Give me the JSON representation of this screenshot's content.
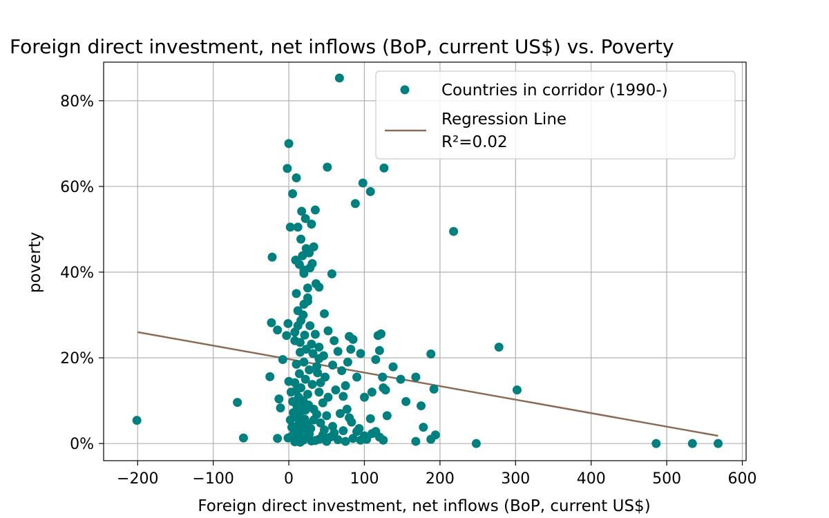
{
  "chart_data": {
    "type": "scatter",
    "title": "Foreign direct investment, net inflows (BoP, current US$) vs. Poverty",
    "xlabel": "Foreign direct investment, net inflows (BoP, current US$)",
    "ylabel": "poverty",
    "xlim": [
      -245,
      605
    ],
    "ylim": [
      -4,
      89
    ],
    "xticks": [
      -200,
      -100,
      0,
      100,
      200,
      300,
      400,
      500,
      600
    ],
    "xtick_labels": [
      "−200",
      "−100",
      "0",
      "100",
      "200",
      "300",
      "400",
      "500",
      "600"
    ],
    "yticks": [
      0,
      20,
      40,
      60,
      80
    ],
    "ytick_labels": [
      "0%",
      "20%",
      "40%",
      "60%",
      "80%"
    ],
    "grid": true,
    "legend": {
      "position": "top-right",
      "scatter_label": "Countries in corridor (1990-)",
      "line_label_1": "Regression Line",
      "line_label_2": "R²=0.02"
    },
    "colors": {
      "points": "#007f7f",
      "regression": "#8c6a55"
    },
    "regression": {
      "x": [
        -200,
        568
      ],
      "y": [
        26.0,
        1.8
      ]
    },
    "series": [
      {
        "name": "Countries in corridor (1990-)",
        "points": [
          [
            -201,
            5.4
          ],
          [
            -68,
            9.6
          ],
          [
            -60,
            1.3
          ],
          [
            -22,
            43.5
          ],
          [
            -23,
            28.2
          ],
          [
            -25,
            15.6
          ],
          [
            -15,
            26.5
          ],
          [
            -13,
            10.4
          ],
          [
            -11,
            8.3
          ],
          [
            -8,
            19.6
          ],
          [
            -15,
            1.2
          ],
          [
            -2,
            64.2
          ],
          [
            0,
            70.0
          ],
          [
            2,
            50.5
          ],
          [
            5,
            58.3
          ],
          [
            -1,
            28.0
          ],
          [
            -3,
            25.2
          ],
          [
            0,
            14.5
          ],
          [
            2,
            5.5
          ],
          [
            4,
            3.8
          ],
          [
            3,
            1.6
          ],
          [
            -1,
            1.3
          ],
          [
            10,
            62.0
          ],
          [
            12,
            50.5
          ],
          [
            16,
            47.7
          ],
          [
            17,
            54.2
          ],
          [
            22,
            52.5
          ],
          [
            23,
            45.5
          ],
          [
            30,
            51.2
          ],
          [
            35,
            54.5
          ],
          [
            33,
            45.9
          ],
          [
            27,
            44.5
          ],
          [
            28,
            41.0
          ],
          [
            31,
            42.0
          ],
          [
            9,
            42.8
          ],
          [
            14,
            41.8
          ],
          [
            18,
            43.8
          ],
          [
            20,
            40.5
          ],
          [
            20,
            39.7
          ],
          [
            36,
            37.3
          ],
          [
            40,
            36.5
          ],
          [
            25,
            36.3
          ],
          [
            10,
            35.0
          ],
          [
            25,
            34.0
          ],
          [
            25,
            33.2
          ],
          [
            20,
            32.5
          ],
          [
            12,
            31.0
          ],
          [
            19,
            30.0
          ],
          [
            47,
            30.3
          ],
          [
            16,
            28.7
          ],
          [
            12,
            27.5
          ],
          [
            8,
            26.0
          ],
          [
            21,
            25.3
          ],
          [
            8,
            24.0
          ],
          [
            15,
            23.6
          ],
          [
            30,
            23.2
          ],
          [
            40,
            22.5
          ],
          [
            23,
            22.0
          ],
          [
            15,
            21.3
          ],
          [
            32,
            21.0
          ],
          [
            40,
            19.8
          ],
          [
            20,
            19.0
          ],
          [
            10,
            18.5
          ],
          [
            37,
            18.0
          ],
          [
            27,
            17.2
          ],
          [
            14,
            16.3
          ],
          [
            48,
            15.5
          ],
          [
            22,
            15.0
          ],
          [
            8,
            14.2
          ],
          [
            31,
            13.8
          ],
          [
            16,
            13.0
          ],
          [
            10,
            12.4
          ],
          [
            40,
            12.0
          ],
          [
            25,
            11.5
          ],
          [
            13,
            10.8
          ],
          [
            19,
            10.0
          ],
          [
            8,
            9.6
          ],
          [
            26,
            9.0
          ],
          [
            11,
            8.5
          ],
          [
            33,
            8.0
          ],
          [
            15,
            7.4
          ],
          [
            37,
            6.8
          ],
          [
            9,
            6.2
          ],
          [
            21,
            5.7
          ],
          [
            14,
            5.0
          ],
          [
            25,
            4.5
          ],
          [
            9,
            3.9
          ],
          [
            18,
            3.3
          ],
          [
            11,
            2.8
          ],
          [
            27,
            2.2
          ],
          [
            14,
            1.8
          ],
          [
            20,
            1.2
          ],
          [
            10,
            0.8
          ],
          [
            30,
            0.6
          ],
          [
            8,
            0.4
          ],
          [
            15,
            0.3
          ],
          [
            35,
            0.7
          ],
          [
            40,
            1.0
          ],
          [
            45,
            2.0
          ],
          [
            50,
            0.5
          ],
          [
            55,
            1.5
          ],
          [
            60,
            2.5
          ],
          [
            65,
            0.9
          ],
          [
            75,
            0.5
          ],
          [
            85,
            1.2
          ],
          [
            90,
            2.8
          ],
          [
            95,
            0.8
          ],
          [
            100,
            1.8
          ],
          [
            110,
            2.3
          ],
          [
            115,
            2.8
          ],
          [
            120,
            1.5
          ],
          [
            125,
            0.8
          ],
          [
            67,
            85.3
          ],
          [
            51,
            64.5
          ],
          [
            57,
            39.6
          ],
          [
            52,
            26.3
          ],
          [
            60,
            24.0
          ],
          [
            58,
            18.3
          ],
          [
            65,
            21.5
          ],
          [
            70,
            17.0
          ],
          [
            72,
            11.0
          ],
          [
            75,
            13.5
          ],
          [
            78,
            19.0
          ],
          [
            80,
            25.0
          ],
          [
            82,
            22.0
          ],
          [
            85,
            24.3
          ],
          [
            88,
            56.0
          ],
          [
            90,
            15.5
          ],
          [
            95,
            21.0
          ],
          [
            98,
            60.8
          ],
          [
            100,
            10.8
          ],
          [
            108,
            58.8
          ],
          [
            110,
            12.0
          ],
          [
            115,
            19.6
          ],
          [
            118,
            25.2
          ],
          [
            120,
            21.7
          ],
          [
            122,
            25.6
          ],
          [
            124,
            15.5
          ],
          [
            126,
            64.3
          ],
          [
            125,
            13.0
          ],
          [
            128,
            12.5
          ],
          [
            130,
            6.5
          ],
          [
            108,
            5.8
          ],
          [
            138,
            17.9
          ],
          [
            148,
            15.0
          ],
          [
            155,
            9.8
          ],
          [
            168,
            15.5
          ],
          [
            175,
            8.8
          ],
          [
            178,
            3.8
          ],
          [
            188,
            20.9
          ],
          [
            192,
            12.7
          ],
          [
            188,
            1.0
          ],
          [
            194,
            2.0
          ],
          [
            168,
            0.5
          ],
          [
            218,
            49.5
          ],
          [
            248,
            0.0
          ],
          [
            278,
            22.5
          ],
          [
            302,
            12.5
          ],
          [
            486,
            0.0
          ],
          [
            534,
            0.0
          ],
          [
            568,
            0.0
          ],
          [
            80,
            6.0
          ],
          [
            83,
            5.0
          ],
          [
            77,
            8.0
          ],
          [
            62,
            12.5
          ],
          [
            68,
            7.0
          ],
          [
            45,
            9.5
          ],
          [
            50,
            6.5
          ],
          [
            52,
            10.8
          ],
          [
            42,
            14.2
          ],
          [
            38,
            16.5
          ],
          [
            46,
            20.5
          ],
          [
            35,
            25.5
          ],
          [
            28,
            27.5
          ],
          [
            18,
            9.2
          ],
          [
            22,
            7.8
          ],
          [
            12,
            6.0
          ],
          [
            6,
            7.2
          ],
          [
            5,
            9.8
          ],
          [
            3,
            12.0
          ],
          [
            17,
            4.2
          ],
          [
            29,
            3.5
          ],
          [
            33,
            5.5
          ],
          [
            24,
            1.5
          ],
          [
            19,
            0.8
          ],
          [
            7,
            2.4
          ],
          [
            11,
            1.0
          ],
          [
            42,
            4.8
          ],
          [
            47,
            3.2
          ],
          [
            58,
            4.0
          ],
          [
            72,
            3.0
          ],
          [
            103,
            1.0
          ],
          [
            93,
            3.5
          ]
        ]
      }
    ]
  }
}
